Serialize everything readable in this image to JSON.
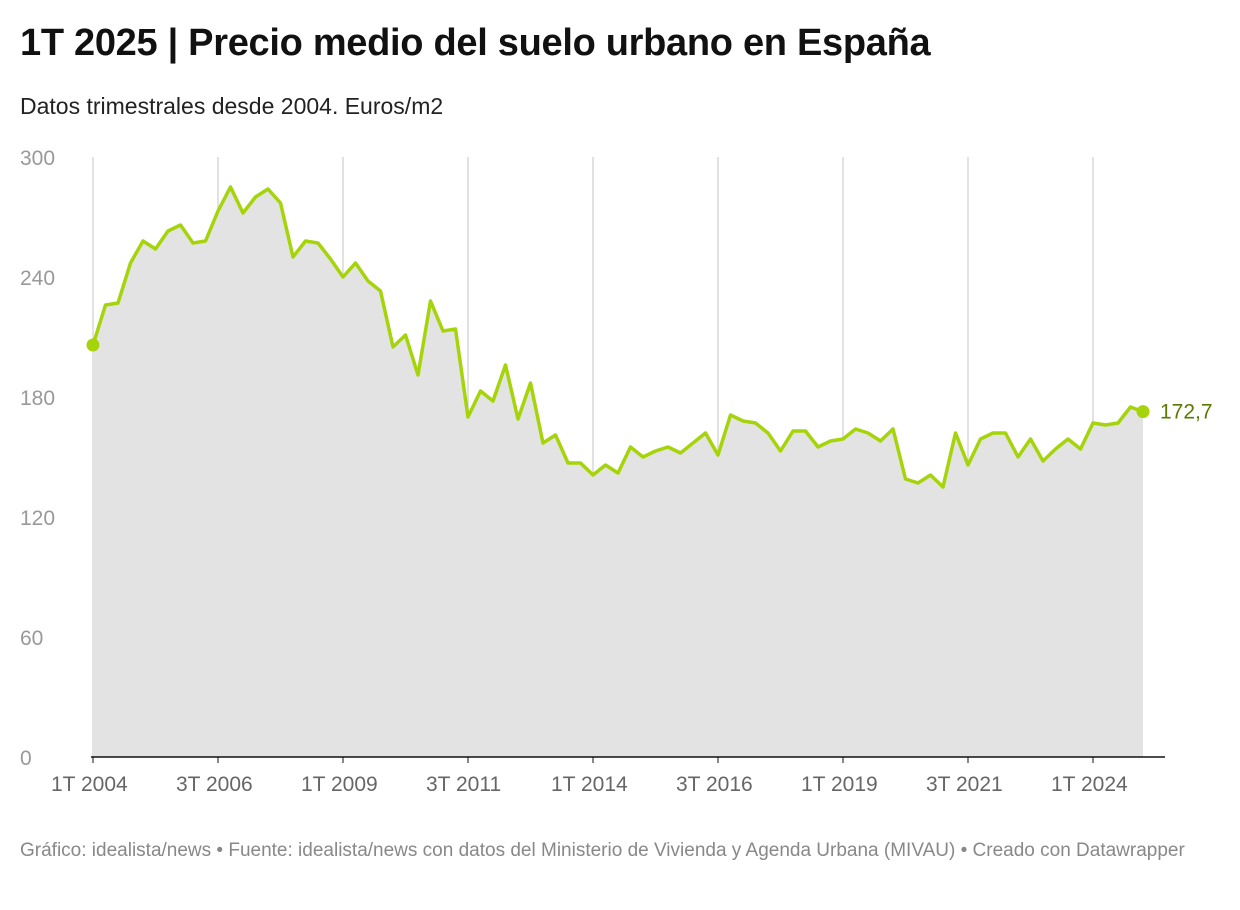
{
  "title": "1T 2025 | Precio medio del suelo urbano en España",
  "subtitle": "Datos trimestrales desde 2004. Euros/m2",
  "footer": "Gráfico: idealista/news • Fuente: idealista/news con datos del Ministerio de Vivienda y Agenda Urbana (MIVAU) • Creado con Datawrapper",
  "colors": {
    "line": "#a6d40a",
    "area": "#e3e3e3",
    "last_label": "#5a7a00",
    "grid": "#d9d9d9",
    "tick_text": "#999999",
    "axis": "#111111"
  },
  "chart_data": {
    "type": "area",
    "title": "1T 2025 | Precio medio del suelo urbano en España",
    "subtitle": "Datos trimestrales desde 2004. Euros/m2",
    "ylim": [
      0,
      300
    ],
    "yticks": [
      0,
      60,
      120,
      180,
      240,
      300
    ],
    "xticks": [
      "1T 2004",
      "3T 2006",
      "1T 2009",
      "3T 2011",
      "1T 2014",
      "3T 2016",
      "1T 2019",
      "3T 2021",
      "1T 2024"
    ],
    "grid": "vertical at x ticks",
    "start_period": "1T 2004",
    "end_period": "1T 2025",
    "last_value_label": "172,7",
    "series": [
      {
        "values": [
          206,
          226,
          227,
          247,
          258,
          254,
          263,
          266,
          257,
          258,
          273,
          285,
          272,
          280,
          284,
          277,
          250,
          258,
          257,
          249,
          240,
          247,
          238,
          233,
          205,
          211,
          191,
          228,
          213,
          214,
          170,
          183,
          178,
          196,
          169,
          187,
          157,
          161,
          147,
          147,
          141,
          146,
          142,
          155,
          150,
          153,
          155,
          152,
          157,
          162,
          151,
          171,
          168,
          167,
          162,
          153,
          163,
          163,
          155,
          158,
          159,
          164,
          162,
          158,
          164,
          139,
          137,
          141,
          135,
          162,
          146,
          159,
          162,
          162,
          150,
          159,
          148,
          154,
          159,
          154,
          167,
          166,
          167,
          175,
          172.7
        ]
      }
    ]
  }
}
